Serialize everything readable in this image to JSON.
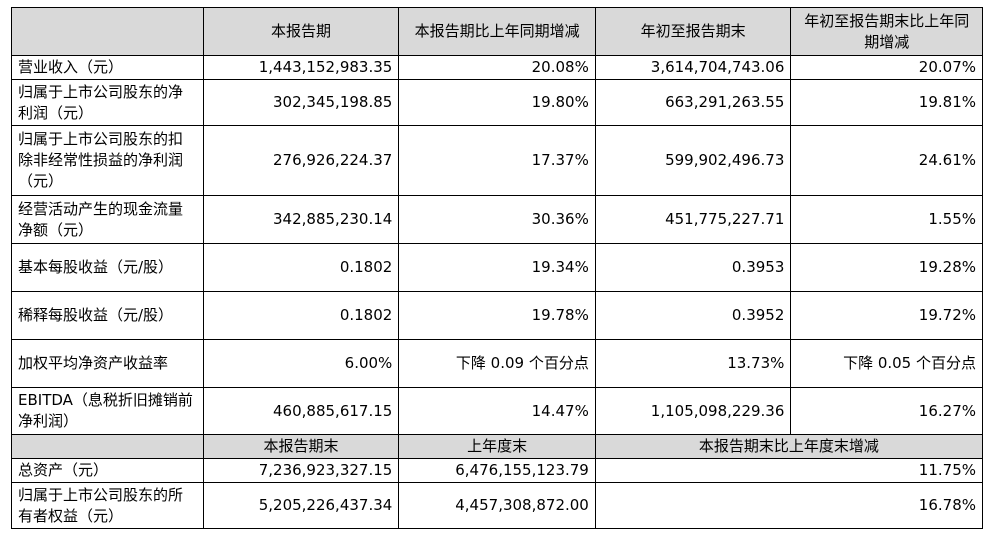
{
  "header": {
    "corner": "",
    "col1": "本报告期",
    "col2": "本报告期比上年同期增减",
    "col3": "年初至报告期末",
    "col4": "年初至报告期末比上年同期增减"
  },
  "rows": [
    {
      "label": "营业收入（元）",
      "v1": "1,443,152,983.35",
      "v2": "20.08%",
      "v3": "3,614,704,743.06",
      "v4": "20.07%"
    },
    {
      "label": "归属于上市公司股东的净利润（元）",
      "v1": "302,345,198.85",
      "v2": "19.80%",
      "v3": "663,291,263.55",
      "v4": "19.81%"
    },
    {
      "label": "归属于上市公司股东的扣除非经常性损益的净利润（元）",
      "v1": "276,926,224.37",
      "v2": "17.37%",
      "v3": "599,902,496.73",
      "v4": "24.61%"
    },
    {
      "label": "经营活动产生的现金流量净额（元）",
      "v1": "342,885,230.14",
      "v2": "30.36%",
      "v3": "451,775,227.71",
      "v4": "1.55%"
    },
    {
      "label": "基本每股收益（元/股）",
      "v1": "0.1802",
      "v2": "19.34%",
      "v3": "0.3953",
      "v4": "19.28%"
    },
    {
      "label": "稀释每股收益（元/股）",
      "v1": "0.1802",
      "v2": "19.78%",
      "v3": "0.3952",
      "v4": "19.72%"
    },
    {
      "label": "加权平均净资产收益率",
      "v1": "6.00%",
      "v2": "下降 0.09 个百分点",
      "v3": "13.73%",
      "v4": "下降 0.05 个百分点"
    },
    {
      "label": "EBITDA（息税折旧摊销前净利润）",
      "v1": "460,885,617.15",
      "v2": "14.47%",
      "v3": "1,105,098,229.36",
      "v4": "16.27%"
    }
  ],
  "header2": {
    "corner": "",
    "col1": "本报告期末",
    "col2": "上年度末",
    "col34": "本报告期末比上年度末增减"
  },
  "rows2": [
    {
      "label": "总资产（元）",
      "v1": "7,236,923,327.15",
      "v2": "6,476,155,123.79",
      "v34": "11.75%"
    },
    {
      "label": "归属于上市公司股东的所有者权益（元）",
      "v1": "5,205,226,437.34",
      "v2": "4,457,308,872.00",
      "v34": "16.78%"
    }
  ]
}
